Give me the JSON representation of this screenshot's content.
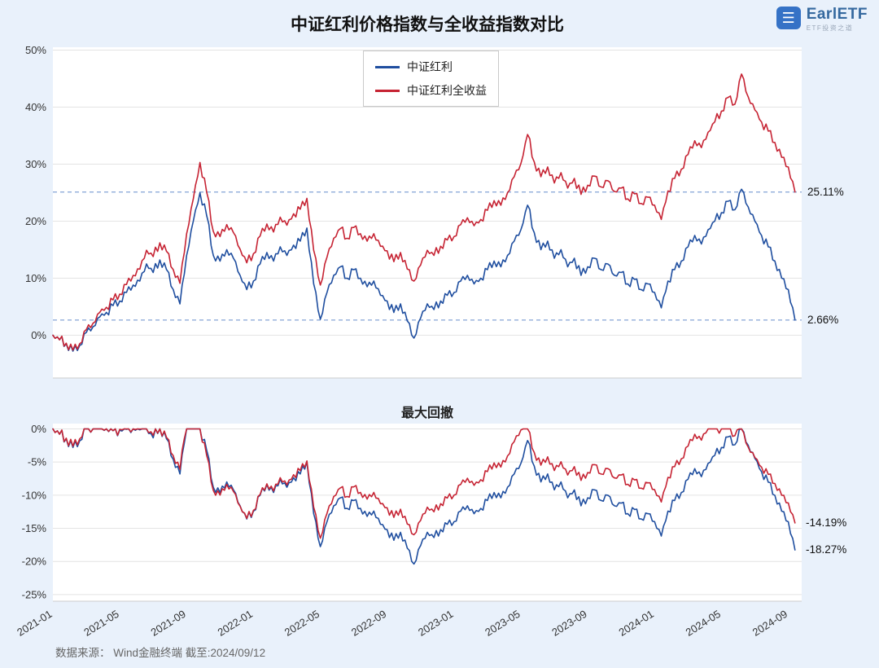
{
  "title": "中证红利价格指数与全收益指数对比",
  "drawdown_title": "最大回撤",
  "footer": "数据来源： Wind金融终端 截至:2024/09/12",
  "logo": {
    "text": "EarlETF",
    "tagline": "ETF投资之道"
  },
  "legend": [
    "中证红利",
    "中证红利全收益"
  ],
  "annotations": {
    "ret_red_end": "25.11%",
    "ret_blue_end": "2.66%",
    "dd_red_end": "-14.19%",
    "dd_blue_end": "-18.27%"
  },
  "colors": {
    "blue": "#1f4e9f",
    "red": "#c62333",
    "ref_dash": "#84a3d6",
    "grid": "#e4e4e4",
    "tick_text": "#333333",
    "plot_bg": "#ffffff",
    "page_bg": "#e9f1fb"
  },
  "chart_data": [
    {
      "type": "line",
      "title": "中证红利价格指数与全收益指数对比",
      "x_unit": "months since 2021-01 (step 0.4 per point, ends 2024-09-12)",
      "x_tick_months": [
        0,
        4,
        8,
        12,
        16,
        20,
        24,
        28,
        32,
        36,
        40,
        44
      ],
      "x_tick_labels": [
        "2021-01",
        "2021-05",
        "2021-09",
        "2022-01",
        "2022-05",
        "2022-09",
        "2023-01",
        "2023-05",
        "2023-09",
        "2024-01",
        "2024-05",
        "2024-09"
      ],
      "y_ticks": [
        0,
        10,
        20,
        30,
        40,
        50
      ],
      "ylim": [
        -7.5,
        50.5
      ],
      "y_unit": "% cumulative return",
      "grid": "horizontal",
      "legend_position": "top-center",
      "ref_lines": [
        {
          "value": 25.11,
          "label": "25.11%"
        },
        {
          "value": 2.66,
          "label": "2.66%"
        }
      ],
      "series": [
        {
          "name": "中证红利",
          "color": "#1f4e9f",
          "step_months": 0.4,
          "values": [
            0,
            -0.8,
            -1.5,
            -2.8,
            -1.8,
            0.5,
            1.5,
            3.2,
            4,
            5.2,
            6,
            7.5,
            8.8,
            9.5,
            12.5,
            11,
            13.2,
            11.5,
            8,
            5.5,
            14,
            20,
            25,
            21,
            14,
            13,
            15,
            13.5,
            10.5,
            8,
            9.5,
            12.5,
            14.5,
            13,
            15.5,
            14,
            15.8,
            16.5,
            18.8,
            9,
            2.8,
            7.5,
            10.5,
            12,
            10,
            11.5,
            10,
            8.5,
            9.5,
            7,
            6,
            4,
            5.5,
            2.5,
            -0.5,
            3,
            5.5,
            4.5,
            6,
            7,
            7.5,
            9.5,
            10.5,
            9,
            10,
            11.5,
            13,
            12,
            14,
            16.5,
            18.5,
            22.8,
            18,
            15,
            16.5,
            13.5,
            15,
            12,
            13.5,
            10.5,
            12,
            13.5,
            11.5,
            12.5,
            10.5,
            11,
            9,
            9.8,
            8,
            9,
            7.5,
            4.8,
            9.5,
            11.5,
            13,
            15.5,
            17.5,
            16,
            18.5,
            20,
            21.5,
            23.5,
            22,
            25.6,
            22.5,
            20,
            17.5,
            15.5,
            13,
            10,
            8,
            2.66
          ]
        },
        {
          "name": "中证红利全收益",
          "color": "#c62333",
          "step_months": 0.4,
          "values": [
            0,
            -0.8,
            -1.4,
            -2.6,
            -1.5,
            1,
            2.1,
            4,
            4.9,
            6.2,
            7.2,
            8.9,
            10.5,
            11.6,
            14.9,
            13.8,
            16.2,
            14.7,
            11.5,
            9.1,
            17.8,
            23.9,
            30.3,
            25.1,
            18.2,
            17.3,
            19.4,
            18,
            15.1,
            12.7,
            14.3,
            17.4,
            19.5,
            18.1,
            20.7,
            19.3,
            21.3,
            22.1,
            24,
            14.9,
            8.8,
            13.7,
            17,
            18.7,
            17,
            18.9,
            17.8,
            16.5,
            17.8,
            15.6,
            14.8,
            12.9,
            14.5,
            11.6,
            9.5,
            12.3,
            14.9,
            14,
            15.6,
            16.7,
            17.3,
            19.4,
            20.6,
            19.2,
            20.3,
            21.9,
            23.6,
            22.8,
            25,
            27.8,
            30.1,
            35.2,
            30.4,
            27.8,
            29.5,
            26.7,
            28.5,
            25.8,
            27.5,
            24.7,
            26.3,
            27.9,
            26,
            27.1,
            25.2,
            25.8,
            23.9,
            24.8,
            23.1,
            24.2,
            22.8,
            20.3,
            25.3,
            27.5,
            29.1,
            31.7,
            34.1,
            32.9,
            35.6,
            37.4,
            39.3,
            41.7,
            40.5,
            45.8,
            41.8,
            39.5,
            37.4,
            35.8,
            33.8,
            31.2,
            29.5,
            25.11
          ]
        }
      ]
    },
    {
      "type": "line",
      "title": "最大回撤",
      "y_ticks": [
        0,
        -5,
        -10,
        -15,
        -20,
        -25
      ],
      "ylim": [
        -26,
        0.8
      ],
      "y_unit": "% drawdown",
      "derived": "drawdown computed from chart_data[0] series (running-peak ratio)",
      "end_labels": [
        {
          "series": "中证红利全收益",
          "label": "-14.19%"
        },
        {
          "series": "中证红利",
          "label": "-18.27%"
        }
      ]
    }
  ]
}
